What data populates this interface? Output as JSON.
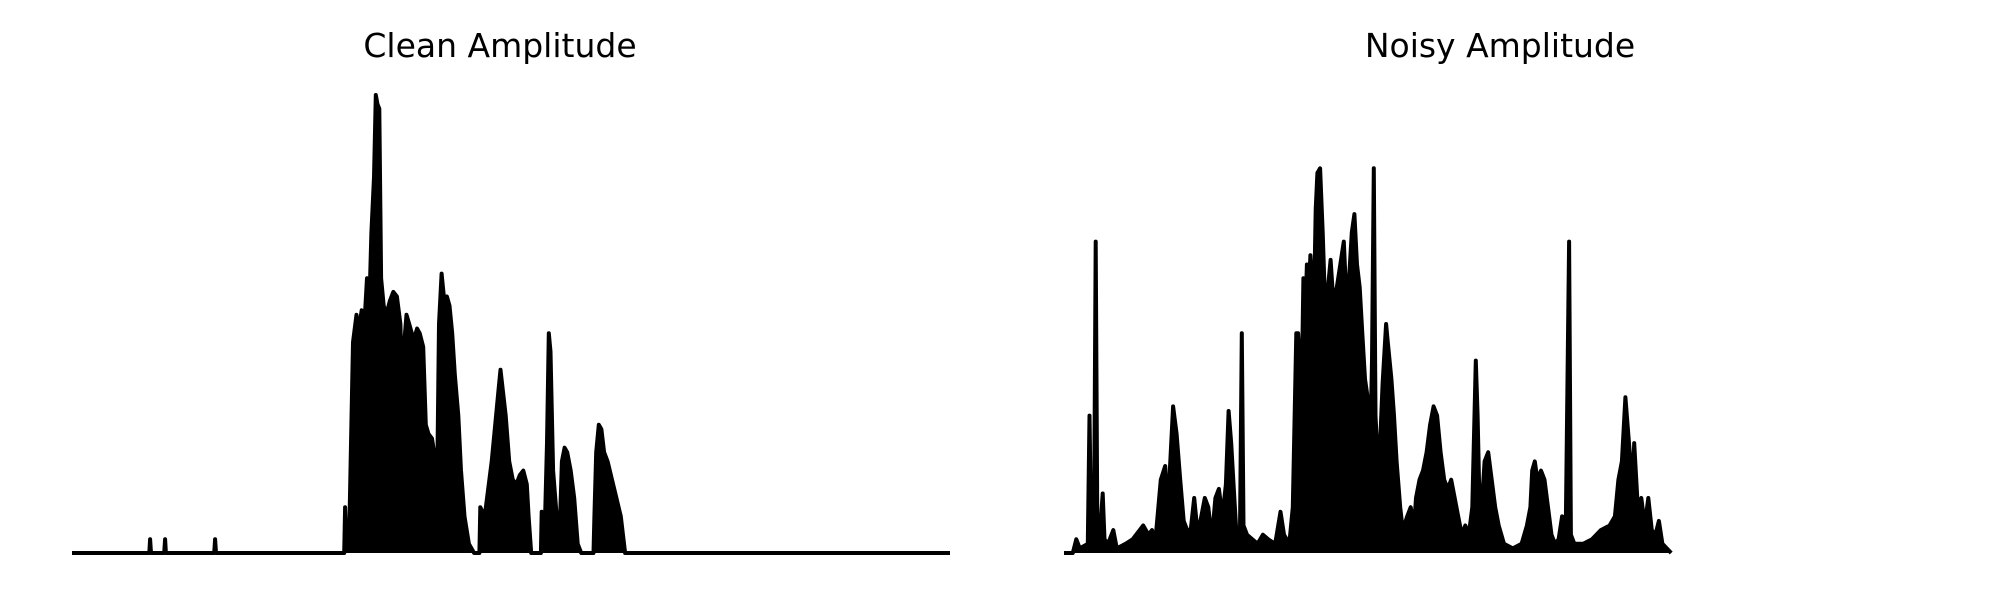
{
  "chart_data": [
    {
      "type": "area",
      "title": "Clean Amplitude",
      "xlabel": "",
      "ylabel": "",
      "axes_visible": false,
      "grid": false,
      "color": "#000000",
      "xlim": [
        0,
        1000
      ],
      "ylim": [
        0,
        1.0
      ],
      "points": [
        [
          0,
          0
        ],
        [
          88,
          0
        ],
        [
          89,
          0.03
        ],
        [
          90,
          0
        ],
        [
          105,
          0
        ],
        [
          106,
          0.03
        ],
        [
          107,
          0
        ],
        [
          162,
          0
        ],
        [
          163,
          0.03
        ],
        [
          164,
          0
        ],
        [
          310,
          0
        ],
        [
          311,
          0.1
        ],
        [
          312,
          0.05
        ],
        [
          316,
          0.06
        ],
        [
          320,
          0.46
        ],
        [
          324,
          0.52
        ],
        [
          326,
          0.48
        ],
        [
          330,
          0.53
        ],
        [
          333,
          0.5
        ],
        [
          336,
          0.6
        ],
        [
          339,
          0.56
        ],
        [
          341,
          0.7
        ],
        [
          344,
          0.82
        ],
        [
          346,
          1.0
        ],
        [
          348,
          0.98
        ],
        [
          350,
          0.97
        ],
        [
          352,
          0.6
        ],
        [
          355,
          0.54
        ],
        [
          358,
          0.52
        ],
        [
          362,
          0.55
        ],
        [
          366,
          0.57
        ],
        [
          370,
          0.56
        ],
        [
          374,
          0.5
        ],
        [
          376,
          0.36
        ],
        [
          378,
          0.45
        ],
        [
          381,
          0.52
        ],
        [
          384,
          0.5
        ],
        [
          387,
          0.48
        ],
        [
          390,
          0.47
        ],
        [
          393,
          0.49
        ],
        [
          396,
          0.48
        ],
        [
          400,
          0.45
        ],
        [
          403,
          0.28
        ],
        [
          406,
          0.26
        ],
        [
          410,
          0.25
        ],
        [
          414,
          0.2
        ],
        [
          416,
          0.16
        ],
        [
          418,
          0.5
        ],
        [
          421,
          0.61
        ],
        [
          424,
          0.55
        ],
        [
          427,
          0.56
        ],
        [
          430,
          0.54
        ],
        [
          433,
          0.48
        ],
        [
          436,
          0.39
        ],
        [
          440,
          0.3
        ],
        [
          443,
          0.18
        ],
        [
          447,
          0.08
        ],
        [
          452,
          0.02
        ],
        [
          458,
          0
        ],
        [
          464,
          0
        ],
        [
          465,
          0.1
        ],
        [
          470,
          0.08
        ],
        [
          474,
          0.14
        ],
        [
          478,
          0.2
        ],
        [
          482,
          0.28
        ],
        [
          486,
          0.36
        ],
        [
          488,
          0.4
        ],
        [
          491,
          0.35
        ],
        [
          494,
          0.3
        ],
        [
          498,
          0.2
        ],
        [
          502,
          0.16
        ],
        [
          506,
          0.15
        ],
        [
          510,
          0.17
        ],
        [
          514,
          0.18
        ],
        [
          518,
          0.15
        ],
        [
          520,
          0.08
        ],
        [
          523,
          0
        ],
        [
          534,
          0
        ],
        [
          535,
          0.09
        ],
        [
          538,
          0.02
        ],
        [
          541,
          0.24
        ],
        [
          543,
          0.48
        ],
        [
          545,
          0.44
        ],
        [
          548,
          0.18
        ],
        [
          552,
          0.08
        ],
        [
          555,
          0.02
        ],
        [
          558,
          0.2
        ],
        [
          561,
          0.23
        ],
        [
          564,
          0.22
        ],
        [
          568,
          0.18
        ],
        [
          572,
          0.12
        ],
        [
          576,
          0.02
        ],
        [
          580,
          0
        ],
        [
          594,
          0
        ],
        [
          595,
          0.08
        ],
        [
          597,
          0.22
        ],
        [
          600,
          0.28
        ],
        [
          603,
          0.27
        ],
        [
          606,
          0.22
        ],
        [
          610,
          0.2
        ],
        [
          615,
          0.16
        ],
        [
          620,
          0.12
        ],
        [
          625,
          0.08
        ],
        [
          630,
          0
        ],
        [
          700,
          0
        ],
        [
          1000,
          0
        ]
      ]
    },
    {
      "type": "area",
      "title": "Noisy Amplitude",
      "xlabel": "",
      "ylabel": "",
      "axes_visible": false,
      "grid": false,
      "color": "#000000",
      "xlim": [
        0,
        1000
      ],
      "ylim": [
        0,
        1.0
      ],
      "points": [
        [
          0,
          0
        ],
        [
          10,
          0
        ],
        [
          14,
          0.03
        ],
        [
          18,
          0.01
        ],
        [
          27,
          0.02
        ],
        [
          29,
          0.3
        ],
        [
          31,
          0.02
        ],
        [
          34,
          0.01
        ],
        [
          36,
          0.68
        ],
        [
          38,
          0.03
        ],
        [
          40,
          0.02
        ],
        [
          44,
          0.13
        ],
        [
          46,
          0.03
        ],
        [
          50,
          0.02
        ],
        [
          56,
          0.05
        ],
        [
          60,
          0.01
        ],
        [
          70,
          0.02
        ],
        [
          78,
          0.03
        ],
        [
          86,
          0.05
        ],
        [
          90,
          0.06
        ],
        [
          96,
          0.04
        ],
        [
          100,
          0.05
        ],
        [
          104,
          0.03
        ],
        [
          110,
          0.16
        ],
        [
          115,
          0.19
        ],
        [
          118,
          0.08
        ],
        [
          120,
          0.17
        ],
        [
          124,
          0.32
        ],
        [
          128,
          0.26
        ],
        [
          132,
          0.16
        ],
        [
          136,
          0.07
        ],
        [
          140,
          0.05
        ],
        [
          144,
          0.05
        ],
        [
          148,
          0.12
        ],
        [
          152,
          0.04
        ],
        [
          156,
          0.08
        ],
        [
          160,
          0.12
        ],
        [
          164,
          0.1
        ],
        [
          168,
          0.03
        ],
        [
          172,
          0.12
        ],
        [
          176,
          0.14
        ],
        [
          180,
          0.08
        ],
        [
          184,
          0.15
        ],
        [
          187,
          0.31
        ],
        [
          190,
          0.24
        ],
        [
          193,
          0.14
        ],
        [
          196,
          0.04
        ],
        [
          200,
          0.05
        ],
        [
          202,
          0.48
        ],
        [
          204,
          0.06
        ],
        [
          208,
          0.04
        ],
        [
          214,
          0.03
        ],
        [
          220,
          0.02
        ],
        [
          226,
          0.04
        ],
        [
          232,
          0.03
        ],
        [
          240,
          0.02
        ],
        [
          246,
          0.09
        ],
        [
          250,
          0.04
        ],
        [
          256,
          0.02
        ],
        [
          260,
          0.1
        ],
        [
          264,
          0.48
        ],
        [
          266,
          0.48
        ],
        [
          270,
          0.34
        ],
        [
          272,
          0.6
        ],
        [
          274,
          0.5
        ],
        [
          276,
          0.63
        ],
        [
          278,
          0.56
        ],
        [
          280,
          0.65
        ],
        [
          284,
          0.53
        ],
        [
          286,
          0.75
        ],
        [
          288,
          0.83
        ],
        [
          291,
          0.84
        ],
        [
          294,
          0.7
        ],
        [
          297,
          0.52
        ],
        [
          300,
          0.58
        ],
        [
          303,
          0.64
        ],
        [
          306,
          0.55
        ],
        [
          310,
          0.58
        ],
        [
          314,
          0.63
        ],
        [
          318,
          0.68
        ],
        [
          321,
          0.55
        ],
        [
          324,
          0.6
        ],
        [
          327,
          0.7
        ],
        [
          330,
          0.74
        ],
        [
          333,
          0.63
        ],
        [
          336,
          0.58
        ],
        [
          339,
          0.48
        ],
        [
          342,
          0.38
        ],
        [
          345,
          0.34
        ],
        [
          348,
          0.22
        ],
        [
          350,
          0.42
        ],
        [
          352,
          0.84
        ],
        [
          354,
          0.3
        ],
        [
          356,
          0.22
        ],
        [
          358,
          0.18
        ],
        [
          362,
          0.37
        ],
        [
          366,
          0.5
        ],
        [
          368,
          0.46
        ],
        [
          372,
          0.38
        ],
        [
          375,
          0.3
        ],
        [
          378,
          0.2
        ],
        [
          382,
          0.1
        ],
        [
          385,
          0.05
        ],
        [
          390,
          0.08
        ],
        [
          394,
          0.1
        ],
        [
          398,
          0.06
        ],
        [
          400,
          0.12
        ],
        [
          404,
          0.16
        ],
        [
          408,
          0.18
        ],
        [
          412,
          0.22
        ],
        [
          416,
          0.28
        ],
        [
          420,
          0.32
        ],
        [
          424,
          0.3
        ],
        [
          428,
          0.22
        ],
        [
          432,
          0.16
        ],
        [
          436,
          0.14
        ],
        [
          440,
          0.16
        ],
        [
          444,
          0.12
        ],
        [
          448,
          0.08
        ],
        [
          452,
          0.04
        ],
        [
          456,
          0.06
        ],
        [
          460,
          0.04
        ],
        [
          464,
          0.1
        ],
        [
          468,
          0.42
        ],
        [
          470,
          0.3
        ],
        [
          472,
          0.12
        ],
        [
          474,
          0.08
        ],
        [
          478,
          0.2
        ],
        [
          482,
          0.22
        ],
        [
          486,
          0.16
        ],
        [
          490,
          0.1
        ],
        [
          494,
          0.06
        ],
        [
          500,
          0.02
        ],
        [
          510,
          0.01
        ],
        [
          520,
          0.02
        ],
        [
          526,
          0.06
        ],
        [
          530,
          0.1
        ],
        [
          532,
          0.18
        ],
        [
          535,
          0.2
        ],
        [
          538,
          0.16
        ],
        [
          542,
          0.18
        ],
        [
          546,
          0.16
        ],
        [
          550,
          0.1
        ],
        [
          554,
          0.04
        ],
        [
          558,
          0.02
        ],
        [
          562,
          0.03
        ],
        [
          566,
          0.08
        ],
        [
          570,
          0.02
        ],
        [
          574,
          0.68
        ],
        [
          576,
          0.04
        ],
        [
          580,
          0.02
        ],
        [
          590,
          0.02
        ],
        [
          600,
          0.03
        ],
        [
          610,
          0.05
        ],
        [
          620,
          0.06
        ],
        [
          626,
          0.08
        ],
        [
          630,
          0.16
        ],
        [
          634,
          0.2
        ],
        [
          638,
          0.34
        ],
        [
          642,
          0.24
        ],
        [
          646,
          0.14
        ],
        [
          648,
          0.24
        ],
        [
          652,
          0.1
        ],
        [
          656,
          0.12
        ],
        [
          660,
          0.06
        ],
        [
          664,
          0.12
        ],
        [
          668,
          0.05
        ],
        [
          672,
          0.04
        ],
        [
          676,
          0.07
        ],
        [
          680,
          0.02
        ],
        [
          690,
          0
        ]
      ]
    }
  ]
}
